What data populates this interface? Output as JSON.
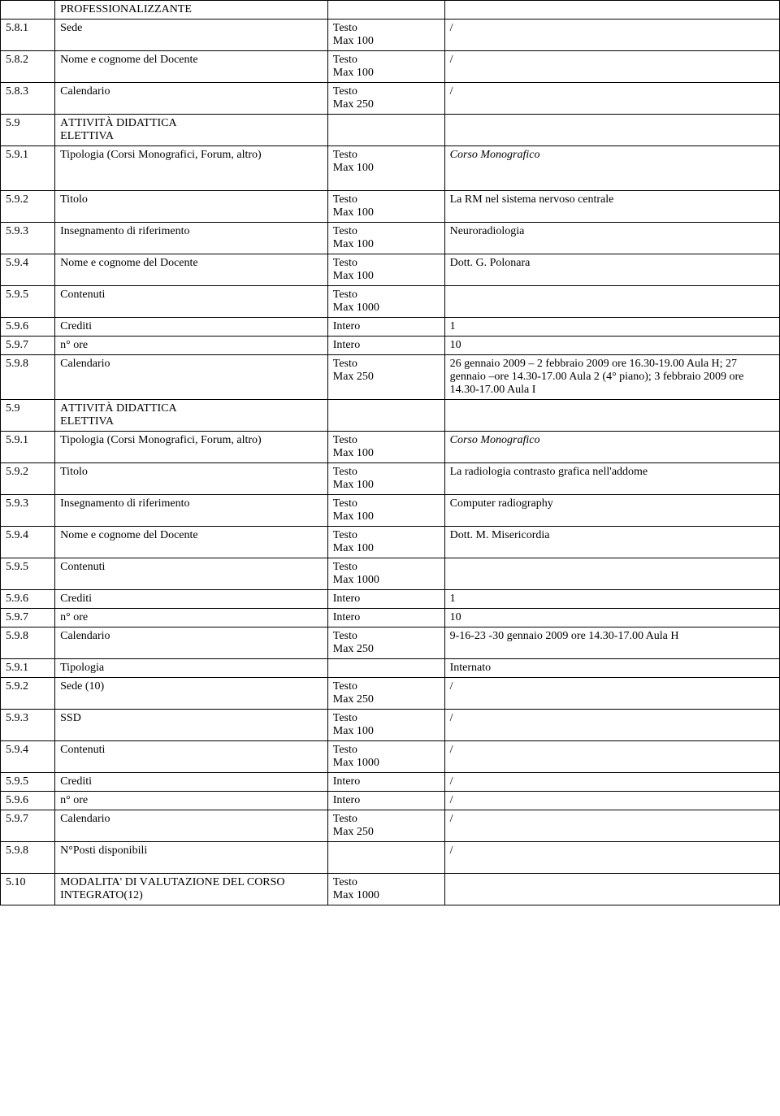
{
  "text": {
    "testo": "Testo",
    "max100": "Max 100",
    "max250": "Max 250",
    "max1000": "Max 1000",
    "intero": "Intero",
    "slash": "/"
  },
  "rows": {
    "r0": {
      "label": "PROFESSIONALIZZANTE"
    },
    "r1": {
      "num": "5.8.1",
      "label": "Sede"
    },
    "r2": {
      "num": "5.8.2",
      "label": "Nome e cognome del Docente"
    },
    "r3": {
      "num": "5.8.3",
      "label": "Calendario"
    },
    "r4": {
      "num": "5.9",
      "label_a": "A",
      "label_b": "TTIVITÀ ",
      "label_c": "D",
      "label_d": "IDATTICA ",
      "label_e": "E",
      "label_f": "LETTIVA"
    },
    "r5": {
      "num": "5.9.1",
      "label": "Tipologia (Corsi Monografici, Forum, altro)",
      "value": "Corso Monografico"
    },
    "r6": {
      "num": "5.9.2",
      "label": "Titolo",
      "value": "La RM nel sistema nervoso centrale"
    },
    "r7": {
      "num": "5.9.3",
      "label": "Insegnamento di riferimento",
      "value": "Neuroradiologia"
    },
    "r8": {
      "num": "5.9.4",
      "label": "Nome e cognome del Docente",
      "value": "Dott. G. Polonara"
    },
    "r9": {
      "num": "5.9.5",
      "label": "Contenuti"
    },
    "r10": {
      "num": "5.9.6",
      "label": "Crediti",
      "value": "1"
    },
    "r11": {
      "num": "5.9.7",
      "label": "n° ore",
      "value": "10"
    },
    "r12": {
      "num": "5.9.8",
      "label": "Calendario",
      "value": "26 gennaio 2009 – 2 febbraio 2009 ore 16.30-19.00 Aula H; 27 gennaio –ore 14.30-17.00 Aula 2 (4° piano); 3 febbraio 2009 ore 14.30-17.00 Aula I"
    },
    "r13": {
      "num": "5.9",
      "label_a": "A",
      "label_b": "TTIVITÀ ",
      "label_c": "D",
      "label_d": "IDATTICA ",
      "label_e": "E",
      "label_f": "LETTIVA"
    },
    "r14": {
      "num": "5.9.1",
      "label": "Tipologia (Corsi Monografici, Forum, altro)",
      "value": "Corso Monografico"
    },
    "r15": {
      "num": "5.9.2",
      "label": "Titolo",
      "value": "La radiologia contrasto grafica nell'addome"
    },
    "r16": {
      "num": "5.9.3",
      "label": "Insegnamento di riferimento",
      "value": "Computer radiography"
    },
    "r17": {
      "num": "5.9.4",
      "label": "Nome e cognome del Docente",
      "value": "Dott. M. Misericordia"
    },
    "r18": {
      "num": "5.9.5",
      "label": "Contenuti"
    },
    "r19": {
      "num": "5.9.6",
      "label": "Crediti",
      "value": "1"
    },
    "r20": {
      "num": "5.9.7",
      "label": "n° ore",
      "value": "10"
    },
    "r21": {
      "num": "5.9.8",
      "label": "Calendario",
      "value": "9-16-23 -30 gennaio 2009 ore 14.30-17.00 Aula H"
    },
    "r22": {
      "num": "5.9.1",
      "label": "Tipologia",
      "value": "Internato"
    },
    "r23": {
      "num": "5.9.2",
      "label": "Sede (10)"
    },
    "r24": {
      "num": "5.9.3",
      "label": "SSD"
    },
    "r25": {
      "num": "5.9.4",
      "label": "Contenuti"
    },
    "r26": {
      "num": "5.9.5",
      "label": "Crediti"
    },
    "r27": {
      "num": "5.9.6",
      "label": "n° ore"
    },
    "r28": {
      "num": "5.9.7",
      "label": "Calendario"
    },
    "r29": {
      "num": "5.9.8",
      "label": "N°Posti disponibili"
    },
    "r30": {
      "num": "5.10",
      "label_a": "M",
      "label_b": "ODALITA",
      "label_c": "' DI ",
      "label_d": "V",
      "label_e": "ALUTAZIONE ",
      "label_f": "DEL CORSO INTEGRATO(12)"
    }
  }
}
